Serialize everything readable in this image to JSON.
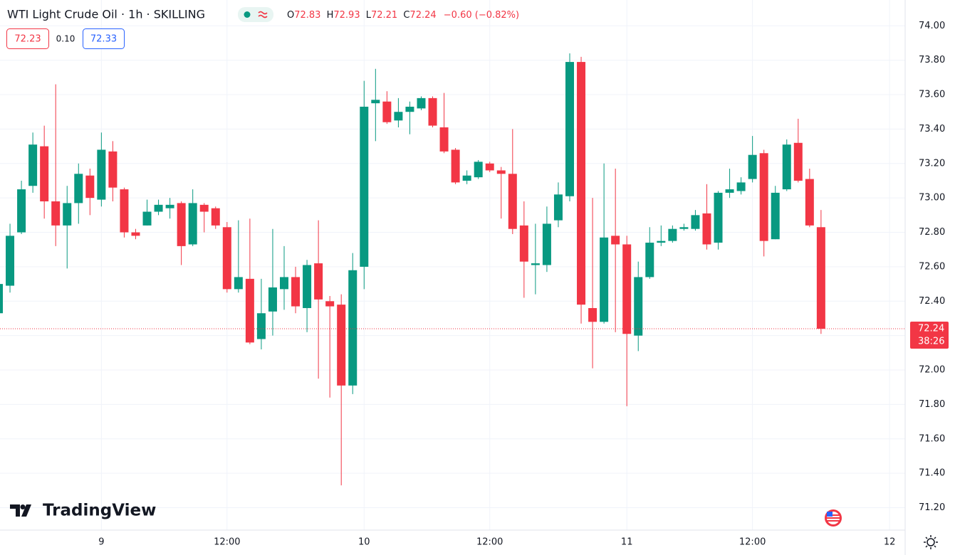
{
  "chart_data": {
    "type": "candlestick",
    "title": "WTI Light Crude Oil · 1h · SKILLING",
    "legend_labels": [
      "O",
      "H",
      "L",
      "C"
    ],
    "change_label": "−0.60 (−0.82%)",
    "bid": "72.23",
    "spread": "0.10",
    "ask": "72.33",
    "countdown": "38:26",
    "watermark": "TradingView",
    "up_color": "#089981",
    "down_color": "#f23645",
    "grid": true,
    "categories": [
      null,
      null,
      null,
      null,
      null,
      null,
      null,
      null,
      null,
      "9",
      null,
      null,
      null,
      null,
      null,
      null,
      null,
      null,
      null,
      null,
      "12:00",
      null,
      null,
      null,
      null,
      null,
      null,
      null,
      null,
      null,
      null,
      null,
      "10",
      null,
      null,
      null,
      null,
      null,
      null,
      null,
      null,
      null,
      null,
      "12:00",
      null,
      null,
      null,
      null,
      null,
      null,
      null,
      null,
      null,
      null,
      null,
      "11",
      null,
      null,
      null,
      null,
      null,
      null,
      null,
      null,
      null,
      null,
      "12:00",
      null,
      null,
      null,
      null,
      null,
      null,
      null,
      null,
      null,
      null,
      null,
      "12"
    ],
    "open": [
      72.33,
      72.49,
      72.8,
      73.07,
      73.3,
      72.98,
      72.84,
      72.97,
      73.13,
      72.99,
      73.27,
      73.05,
      72.8,
      72.84,
      72.92,
      72.94,
      72.97,
      72.73,
      72.96,
      72.94,
      72.83,
      72.47,
      72.53,
      72.18,
      72.34,
      72.47,
      72.54,
      72.36,
      72.62,
      72.4,
      72.38,
      71.91,
      72.6,
      73.55,
      73.56,
      73.45,
      73.5,
      73.52,
      73.58,
      73.41,
      73.28,
      73.1,
      73.12,
      73.2,
      73.16,
      73.14,
      72.84,
      72.61,
      72.61,
      72.87,
      73.01,
      73.79,
      72.36,
      72.28,
      72.78,
      72.73,
      72.2,
      72.54,
      72.74,
      72.75,
      72.82,
      72.82,
      72.91,
      72.74,
      73.03,
      73.04,
      73.11,
      73.26,
      72.76,
      73.05,
      73.32,
      73.11,
      72.83,
      null,
      null,
      null,
      null,
      null,
      null
    ],
    "high": [
      72.52,
      72.85,
      73.1,
      73.38,
      73.42,
      73.66,
      73.07,
      73.2,
      73.17,
      73.38,
      73.33,
      73.06,
      72.82,
      72.99,
      72.99,
      73.0,
      72.98,
      73.05,
      72.97,
      72.95,
      72.86,
      72.87,
      72.88,
      72.53,
      72.82,
      72.72,
      72.6,
      72.64,
      72.87,
      72.43,
      72.44,
      72.68,
      73.68,
      73.75,
      73.62,
      73.58,
      73.56,
      73.59,
      73.59,
      73.61,
      73.29,
      73.16,
      73.22,
      73.21,
      73.18,
      73.4,
      72.98,
      72.85,
      72.95,
      73.09,
      73.84,
      73.82,
      73.0,
      73.2,
      73.17,
      72.78,
      72.63,
      72.83,
      72.84,
      72.84,
      72.85,
      72.93,
      73.08,
      73.04,
      73.17,
      73.12,
      73.36,
      73.28,
      73.07,
      73.34,
      73.46,
      73.17,
      72.93,
      null,
      null,
      null,
      null,
      null,
      null
    ],
    "low": [
      72.33,
      72.45,
      72.79,
      73.03,
      72.88,
      72.72,
      72.59,
      72.85,
      72.9,
      72.95,
      72.98,
      72.77,
      72.76,
      72.84,
      72.9,
      72.88,
      72.61,
      72.72,
      72.8,
      72.82,
      72.45,
      72.45,
      72.15,
      72.12,
      72.2,
      72.35,
      72.33,
      72.22,
      71.95,
      71.84,
      71.33,
      71.86,
      72.47,
      73.33,
      73.43,
      73.41,
      73.37,
      73.51,
      73.41,
      73.26,
      73.08,
      73.08,
      73.11,
      73.15,
      72.88,
      72.79,
      72.42,
      72.44,
      72.57,
      72.83,
      72.98,
      72.27,
      72.01,
      72.27,
      72.22,
      71.79,
      72.11,
      72.53,
      72.72,
      72.74,
      72.81,
      72.81,
      72.7,
      72.7,
      73.0,
      73.02,
      73.09,
      72.66,
      72.76,
      73.04,
      73.09,
      72.83,
      72.21,
      null,
      null,
      null,
      null,
      null,
      null
    ],
    "close": [
      72.5,
      72.78,
      73.05,
      73.31,
      72.98,
      72.84,
      72.97,
      73.14,
      73.0,
      73.28,
      73.06,
      72.8,
      72.78,
      72.92,
      72.96,
      72.96,
      72.72,
      72.97,
      72.92,
      72.84,
      72.47,
      72.54,
      72.16,
      72.33,
      72.48,
      72.54,
      72.37,
      72.61,
      72.41,
      72.37,
      71.91,
      72.58,
      73.53,
      73.57,
      73.44,
      73.5,
      73.53,
      73.58,
      73.42,
      73.27,
      73.09,
      73.13,
      73.21,
      73.16,
      73.14,
      72.82,
      72.63,
      72.62,
      72.85,
      73.02,
      73.79,
      72.38,
      72.28,
      72.77,
      72.73,
      72.21,
      72.54,
      72.74,
      72.75,
      72.82,
      72.83,
      72.9,
      72.73,
      73.03,
      73.05,
      73.09,
      73.25,
      72.75,
      73.03,
      73.31,
      73.1,
      72.84,
      72.24,
      null,
      null,
      null,
      null,
      null,
      null
    ],
    "ylim": [
      71.07,
      74.15
    ],
    "yticks": [
      {
        "value": 71.2,
        "label": "71.20"
      },
      {
        "value": 71.4,
        "label": "71.40"
      },
      {
        "value": 71.6,
        "label": "71.60"
      },
      {
        "value": 71.8,
        "label": "71.80"
      },
      {
        "value": 72.0,
        "label": "72.00"
      },
      {
        "value": 72.2,
        "label": "72.20"
      },
      {
        "value": 72.4,
        "label": "72.40"
      },
      {
        "value": 72.6,
        "label": "72.60"
      },
      {
        "value": 72.8,
        "label": "72.80"
      },
      {
        "value": 73.0,
        "label": "73.00"
      },
      {
        "value": 73.2,
        "label": "73.20"
      },
      {
        "value": 73.4,
        "label": "73.40"
      },
      {
        "value": 73.6,
        "label": "73.60"
      },
      {
        "value": 73.8,
        "label": "73.80"
      },
      {
        "value": 74.0,
        "label": "74.00"
      }
    ]
  }
}
